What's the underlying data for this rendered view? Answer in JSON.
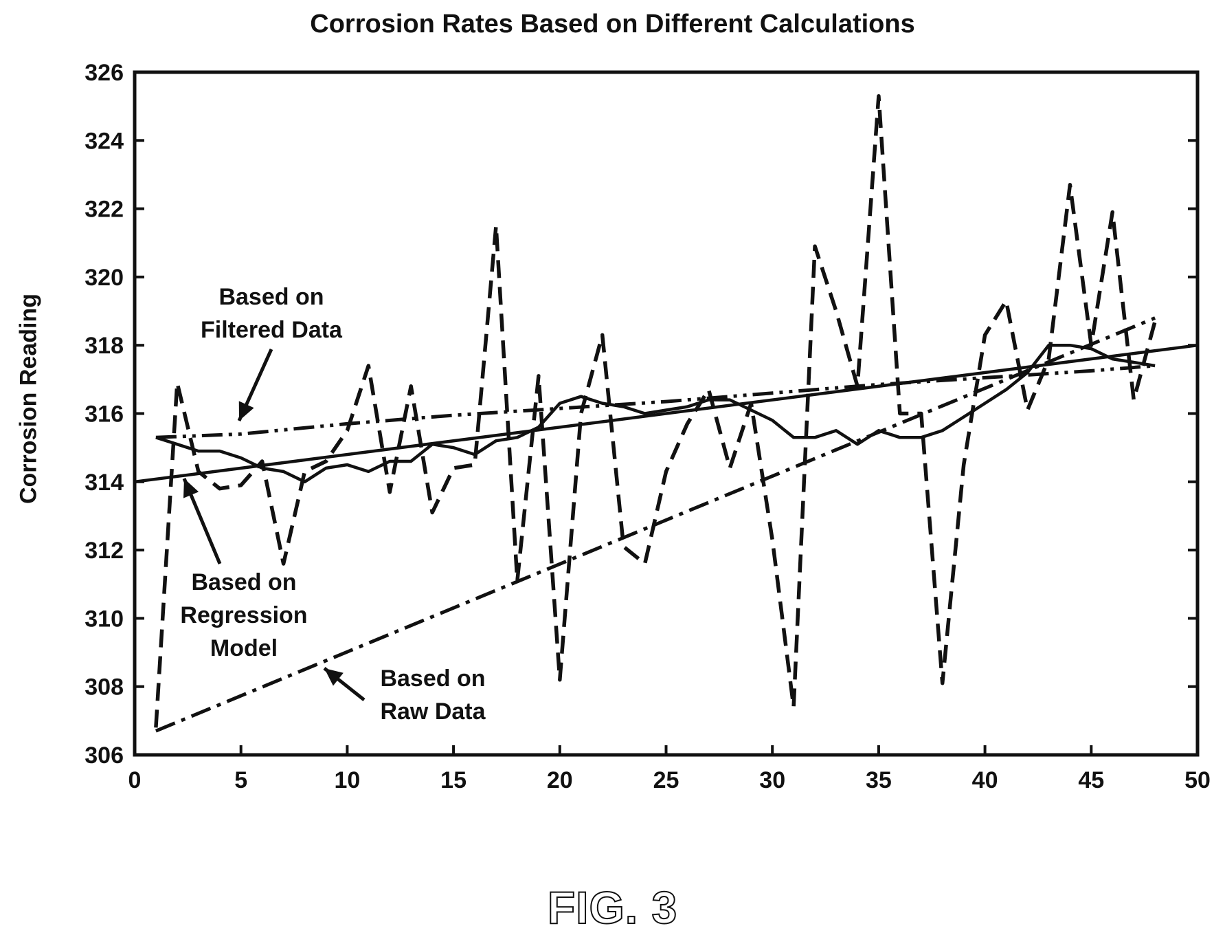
{
  "chart_data": {
    "type": "line",
    "title": "Corrosion Rates Based on Different Calculations",
    "xlabel": "",
    "ylabel": "Corrosion Reading",
    "xlim": [
      0,
      50
    ],
    "ylim": [
      306,
      326
    ],
    "x_ticks": [
      0,
      5,
      10,
      15,
      20,
      25,
      30,
      35,
      40,
      45,
      50
    ],
    "y_ticks": [
      306,
      308,
      310,
      312,
      314,
      316,
      318,
      320,
      322,
      324,
      326
    ],
    "grid": false,
    "legend": "none",
    "series": [
      {
        "style": "dashed",
        "x": [
          1,
          2,
          3,
          4,
          5,
          6,
          7,
          8,
          9,
          10,
          11,
          12,
          13,
          14,
          15,
          16,
          17,
          18,
          19,
          20,
          21,
          22,
          23,
          24,
          25,
          26,
          27,
          28,
          29,
          30,
          31,
          32,
          33,
          34,
          35,
          36,
          37,
          38,
          39,
          40,
          41,
          42,
          43,
          44,
          45,
          46,
          47,
          48
        ],
        "values": [
          306.8,
          316.9,
          314.3,
          313.8,
          313.9,
          314.6,
          311.6,
          314.3,
          314.6,
          315.5,
          317.4,
          313.7,
          316.8,
          313.1,
          314.4,
          314.5,
          321.5,
          311.1,
          317.1,
          308.2,
          316.0,
          318.3,
          312.1,
          311.6,
          314.3,
          315.7,
          316.7,
          314.4,
          316.3,
          312.3,
          307.4,
          320.9,
          319.0,
          316.8,
          325.3,
          316.0,
          316.0,
          308.1,
          314.5,
          318.3,
          319.3,
          316.1,
          317.6,
          322.7,
          318.0,
          321.9,
          316.4,
          318.7
        ]
      },
      {
        "style": "solid",
        "x": [
          1,
          2,
          3,
          4,
          5,
          6,
          7,
          8,
          9,
          10,
          11,
          12,
          13,
          14,
          15,
          16,
          17,
          18,
          19,
          20,
          21,
          22,
          23,
          24,
          25,
          26,
          27,
          28,
          29,
          30,
          31,
          32,
          33,
          34,
          35,
          36,
          37,
          38,
          39,
          40,
          41,
          42,
          43,
          44,
          45,
          46,
          47,
          48
        ],
        "values": [
          315.3,
          315.1,
          314.9,
          314.9,
          314.7,
          314.4,
          314.3,
          314.0,
          314.4,
          314.5,
          314.3,
          314.6,
          314.6,
          315.1,
          315.0,
          314.8,
          315.2,
          315.3,
          315.6,
          316.3,
          316.5,
          316.3,
          316.2,
          316.0,
          316.1,
          316.2,
          316.4,
          316.4,
          316.1,
          315.8,
          315.3,
          315.3,
          315.5,
          315.1,
          315.5,
          315.3,
          315.3,
          315.5,
          315.9,
          316.3,
          316.7,
          317.2,
          318.0,
          318.0,
          317.9,
          317.6,
          317.5,
          317.4
        ]
      },
      {
        "name": "Based on Regression Model",
        "style": "solid",
        "x": [
          0,
          50
        ],
        "values": [
          314.0,
          318.0
        ]
      },
      {
        "name": "Based on Filtered Data",
        "style": "dash-dot-dot",
        "x": [
          1,
          5,
          10,
          15,
          20,
          25,
          30,
          35,
          40,
          45,
          48
        ],
        "values": [
          315.3,
          315.4,
          315.7,
          315.95,
          316.15,
          316.35,
          316.6,
          316.85,
          317.05,
          317.25,
          317.4
        ]
      },
      {
        "name": "Based on Raw Data",
        "style": "dash-dot",
        "x": [
          1,
          48
        ],
        "values": [
          306.7,
          318.8
        ]
      }
    ],
    "annotations": [
      {
        "lines": [
          "Based on",
          "Filtered Data"
        ]
      },
      {
        "lines": [
          "Based on",
          "Regression",
          "Model"
        ]
      },
      {
        "lines": [
          "Based on",
          "Raw Data"
        ]
      }
    ]
  },
  "figure_label": "FIG. 3"
}
